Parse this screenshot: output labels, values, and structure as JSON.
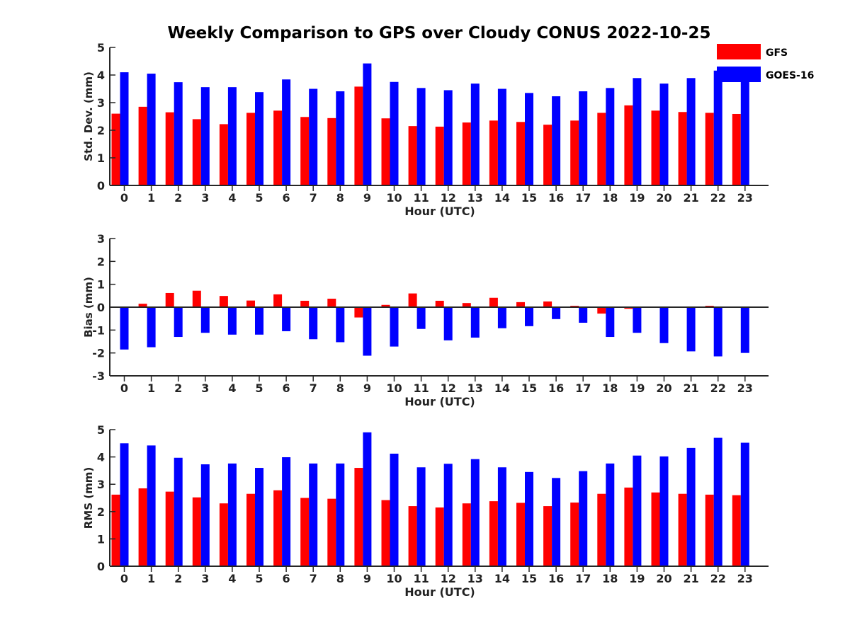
{
  "figure_title": "Weekly Comparison to GPS over Cloudy CONUS 2022-10-25",
  "legend": {
    "placement": "top-right",
    "entries": [
      {
        "name": "GFS",
        "color": "#ff0000"
      },
      {
        "name": "GOES-16",
        "color": "#0000ff"
      }
    ]
  },
  "chart_data": [
    {
      "type": "bar",
      "title": "",
      "xlabel": "Hour (UTC)",
      "ylabel": "Std. Dev. (mm)",
      "ylim": [
        0,
        5
      ],
      "yticks": [
        "0",
        "1",
        "2",
        "3",
        "4",
        "5"
      ],
      "categories": [
        "0",
        "1",
        "2",
        "3",
        "4",
        "5",
        "6",
        "7",
        "8",
        "9",
        "10",
        "11",
        "12",
        "13",
        "14",
        "15",
        "16",
        "17",
        "18",
        "19",
        "20",
        "21",
        "22",
        "23"
      ],
      "series": [
        {
          "name": "GFS",
          "color": "#ff0000",
          "values": [
            2.6,
            2.85,
            2.65,
            2.4,
            2.22,
            2.63,
            2.71,
            2.48,
            2.44,
            3.58,
            2.43,
            2.15,
            2.13,
            2.28,
            2.35,
            2.3,
            2.2,
            2.35,
            2.63,
            2.9,
            2.71,
            2.66,
            2.63,
            2.59
          ]
        },
        {
          "name": "GOES-16",
          "color": "#0000ff",
          "values": [
            4.1,
            4.05,
            3.74,
            3.56,
            3.56,
            3.38,
            3.84,
            3.5,
            3.41,
            4.42,
            3.75,
            3.53,
            3.45,
            3.69,
            3.5,
            3.35,
            3.23,
            3.41,
            3.53,
            3.89,
            3.69,
            3.89,
            4.16,
            4.18
          ]
        }
      ]
    },
    {
      "type": "bar",
      "title": "",
      "xlabel": "Hour (UTC)",
      "ylabel": "Bias (mm)",
      "ylim": [
        -3,
        3
      ],
      "yticks": [
        "-3",
        "-2",
        "-1",
        "0",
        "1",
        "2",
        "3"
      ],
      "zero_line": true,
      "categories": [
        "0",
        "1",
        "2",
        "3",
        "4",
        "5",
        "6",
        "7",
        "8",
        "9",
        "10",
        "11",
        "12",
        "13",
        "14",
        "15",
        "16",
        "17",
        "18",
        "19",
        "20",
        "21",
        "22",
        "23"
      ],
      "series": [
        {
          "name": "GFS",
          "color": "#ff0000",
          "values": [
            -0.02,
            0.15,
            0.62,
            0.72,
            0.49,
            0.29,
            0.56,
            0.28,
            0.37,
            -0.45,
            0.1,
            0.6,
            0.28,
            0.18,
            0.41,
            0.22,
            0.25,
            0.06,
            -0.28,
            -0.07,
            -0.02,
            0.0,
            0.06,
            0.0
          ]
        },
        {
          "name": "GOES-16",
          "color": "#0000ff",
          "values": [
            -1.85,
            -1.75,
            -1.3,
            -1.12,
            -1.2,
            -1.2,
            -1.05,
            -1.4,
            -1.53,
            -2.12,
            -1.72,
            -0.95,
            -1.45,
            -1.33,
            -0.92,
            -0.83,
            -0.52,
            -0.68,
            -1.3,
            -1.12,
            -1.57,
            -1.93,
            -2.15,
            -2.0
          ]
        }
      ]
    },
    {
      "type": "bar",
      "title": "",
      "xlabel": "Hour (UTC)",
      "ylabel": "RMS (mm)",
      "ylim": [
        0,
        5
      ],
      "yticks": [
        "0",
        "1",
        "2",
        "3",
        "4",
        "5"
      ],
      "categories": [
        "0",
        "1",
        "2",
        "3",
        "4",
        "5",
        "6",
        "7",
        "8",
        "9",
        "10",
        "11",
        "12",
        "13",
        "14",
        "15",
        "16",
        "17",
        "18",
        "19",
        "20",
        "21",
        "22",
        "23"
      ],
      "series": [
        {
          "name": "GFS",
          "color": "#ff0000",
          "values": [
            2.62,
            2.85,
            2.73,
            2.52,
            2.3,
            2.65,
            2.78,
            2.5,
            2.47,
            3.6,
            2.42,
            2.2,
            2.15,
            2.3,
            2.38,
            2.32,
            2.2,
            2.33,
            2.65,
            2.88,
            2.7,
            2.65,
            2.62,
            2.6
          ]
        },
        {
          "name": "GOES-16",
          "color": "#0000ff",
          "values": [
            4.5,
            4.42,
            3.97,
            3.73,
            3.76,
            3.6,
            3.99,
            3.76,
            3.76,
            4.9,
            4.12,
            3.62,
            3.75,
            3.92,
            3.62,
            3.45,
            3.23,
            3.48,
            3.76,
            4.05,
            4.02,
            4.33,
            4.7,
            4.52
          ]
        }
      ]
    }
  ]
}
